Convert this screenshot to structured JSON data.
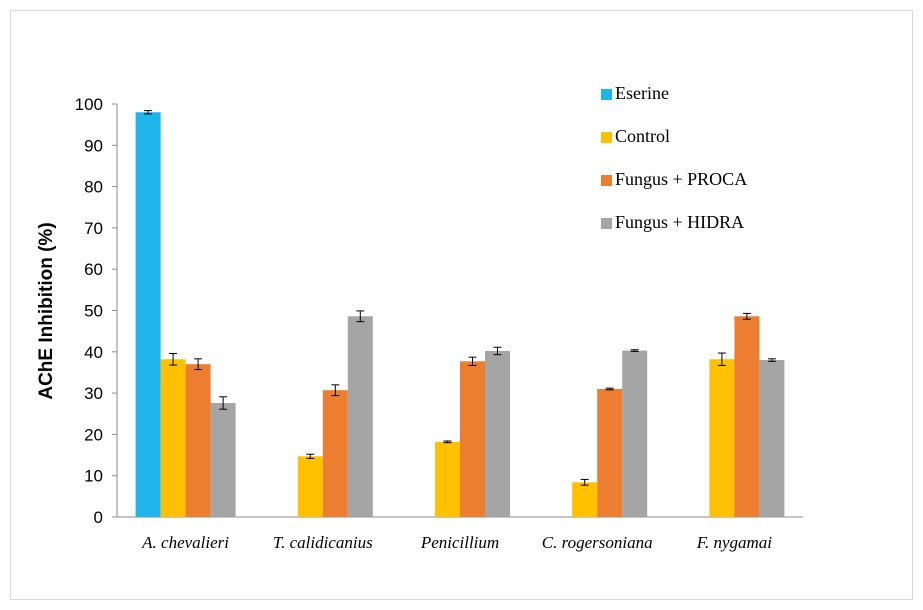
{
  "chart_data": {
    "type": "bar",
    "ylabel": "AChE Inhibition (%)",
    "xlabel": "",
    "ylim": [
      0,
      100
    ],
    "yticks": [
      0,
      10,
      20,
      30,
      40,
      50,
      60,
      70,
      80,
      90,
      100
    ],
    "grid": false,
    "legend_position": "top-right",
    "categories": [
      "A. chevalieri",
      "T. calidicanius",
      "Penicillium",
      "C. rogersoniana",
      "F. nygamai"
    ],
    "series": [
      {
        "name": "Eserine",
        "color": "#1FB4EC",
        "values": [
          98,
          null,
          null,
          null,
          null
        ],
        "errors": [
          0.4,
          null,
          null,
          null,
          null
        ]
      },
      {
        "name": "Control",
        "color": "#FFC000",
        "values": [
          38.2,
          14.7,
          18.2,
          8.4,
          38.2
        ],
        "errors": [
          1.4,
          0.5,
          0.2,
          0.7,
          1.5
        ]
      },
      {
        "name": "Fungus + PROCA",
        "color": "#ED7D31",
        "values": [
          37,
          30.7,
          37.7,
          31,
          48.6
        ],
        "errors": [
          1.3,
          1.3,
          1.0,
          0.2,
          0.7
        ]
      },
      {
        "name": "Fungus + HIDRA",
        "color": "#A5A5A5",
        "values": [
          27.6,
          48.6,
          40.2,
          40.3,
          38
        ],
        "errors": [
          1.5,
          1.3,
          0.9,
          0.2,
          0.3
        ]
      }
    ]
  }
}
